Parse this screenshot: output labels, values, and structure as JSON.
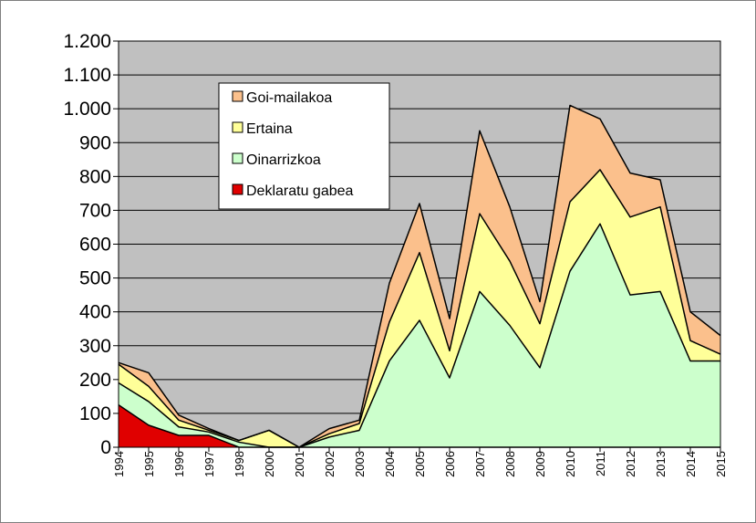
{
  "chart_data": {
    "type": "area",
    "stacked": true,
    "categories": [
      "1994",
      "1995",
      "1996",
      "1997",
      "1998",
      "2000",
      "2001",
      "2002",
      "2003",
      "2004",
      "2005",
      "2006",
      "2007",
      "2008",
      "2009",
      "2010",
      "2011",
      "2012",
      "2013",
      "2014",
      "2015"
    ],
    "series": [
      {
        "name": "Deklaratu gabea",
        "color": "#e00000",
        "values": [
          125,
          65,
          35,
          35,
          0,
          0,
          0,
          0,
          0,
          0,
          0,
          0,
          0,
          0,
          0,
          0,
          0,
          0,
          0,
          0,
          0
        ]
      },
      {
        "name": "Oinarrizkoa",
        "color": "#ccffcc",
        "values": [
          65,
          70,
          25,
          10,
          15,
          0,
          0,
          30,
          50,
          255,
          375,
          205,
          460,
          360,
          235,
          520,
          660,
          450,
          460,
          255,
          255
        ]
      },
      {
        "name": "Ertaina",
        "color": "#ffff99",
        "values": [
          55,
          45,
          20,
          5,
          5,
          50,
          0,
          10,
          20,
          115,
          200,
          80,
          230,
          190,
          130,
          205,
          160,
          230,
          250,
          60,
          20
        ]
      },
      {
        "name": "Goi-mailakoa",
        "color": "#fbc08c",
        "values": [
          5,
          40,
          15,
          5,
          0,
          0,
          0,
          15,
          10,
          115,
          145,
          95,
          245,
          160,
          65,
          285,
          150,
          130,
          80,
          85,
          55
        ]
      }
    ],
    "legend_order": [
      "Goi-mailakoa",
      "Ertaina",
      "Oinarrizkoa",
      "Deklaratu gabea"
    ],
    "ylim": [
      0,
      1200
    ],
    "yticks": [
      0,
      100,
      200,
      300,
      400,
      500,
      600,
      700,
      800,
      900,
      1000,
      1100,
      1200
    ],
    "ytick_labels": [
      "0",
      "100",
      "200",
      "300",
      "400",
      "500",
      "600",
      "700",
      "800",
      "900",
      "1.000",
      "1.100",
      "1.200"
    ],
    "grid": true,
    "legend_position": "top-left",
    "plot_background": "#c0c0c0"
  }
}
